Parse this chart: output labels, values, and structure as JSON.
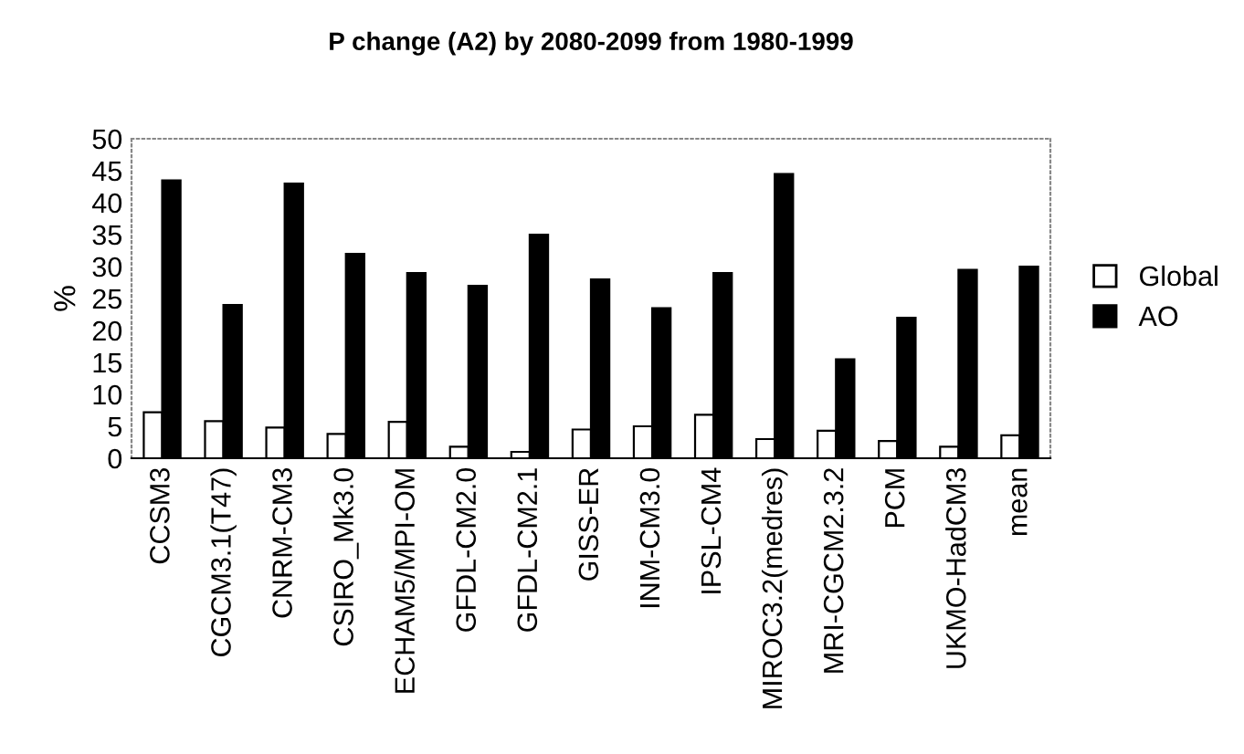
{
  "chart_data": {
    "type": "bar",
    "title": "P change (A2) by 2080-2099 from 1980-1999",
    "ylabel": "%",
    "categories": [
      "CCSM3",
      "CGCM3.1(T47)",
      "CNRM-CM3",
      "CSIRO_Mk3.0",
      "ECHAM5/MPI-OM",
      "GFDL-CM2.0",
      "GFDL-CM2.1",
      "GISS-ER",
      "INM-CM3.0",
      "IPSL-CM4",
      "MIROC3.2(medres)",
      "MRI-CGCM2.3.2",
      "PCM",
      "UKMO-HadCM3",
      "mean"
    ],
    "series": [
      {
        "name": "Global",
        "color": "#ffffff",
        "values": [
          7.2,
          5.8,
          4.8,
          3.8,
          5.7,
          1.8,
          1.0,
          4.5,
          5.0,
          6.8,
          3.0,
          4.3,
          2.7,
          1.8,
          3.6
        ]
      },
      {
        "name": "AO",
        "color": "#000000",
        "values": [
          43.5,
          24,
          43,
          32,
          29,
          27,
          35,
          28,
          23.5,
          29,
          44.5,
          15.5,
          22,
          29.5,
          30
        ]
      }
    ],
    "ylim": [
      0,
      50
    ],
    "yticks": [
      0,
      5,
      10,
      15,
      20,
      25,
      30,
      35,
      40,
      45,
      50
    ],
    "grid": false,
    "legend": "right"
  }
}
